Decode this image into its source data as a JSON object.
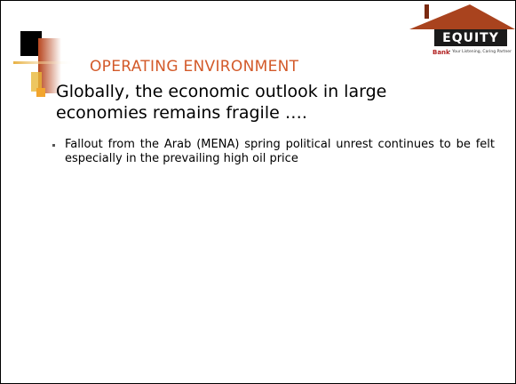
{
  "title": "OPERATING ENVIRONMENT",
  "logo": {
    "name": "EQUITY",
    "bank": "Bank",
    "tagline": "• Your Listening, Caring Partner"
  },
  "bullets": [
    {
      "text": "Globally, the economic outlook in large economies remains fragile ….",
      "sub": [
        "Fallout from the Arab (MENA) spring political unrest continues to be felt especially in the prevailing high oil price"
      ]
    }
  ]
}
